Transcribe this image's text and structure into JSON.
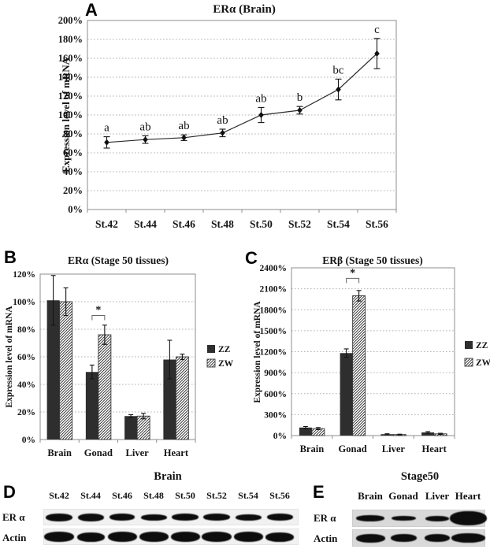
{
  "chart_data": [
    {
      "panel_label": "A",
      "type": "line",
      "title": "ERα (Brain)",
      "ylabel": "Expression level of mRNA",
      "categories": [
        "St.42",
        "St.44",
        "St.46",
        "St.48",
        "St.50",
        "St.52",
        "St.54",
        "St.56"
      ],
      "values": [
        71,
        74,
        76,
        81,
        100,
        105,
        127,
        165
      ],
      "errors": [
        6,
        4,
        3,
        4,
        8,
        4,
        11,
        16
      ],
      "point_labels": [
        "a",
        "ab",
        "ab",
        "ab",
        "ab",
        "b",
        "bc",
        "c"
      ],
      "ylim": [
        0,
        200
      ],
      "ytick_step": 20,
      "ytick_suffix": "%",
      "grid": true,
      "marker": "diamond",
      "colors": {
        "line": "#2b2b2b",
        "marker": "#111111"
      }
    },
    {
      "panel_label": "B",
      "type": "bar",
      "title": "ERα (Stage 50 tissues)",
      "ylabel": "Expression level of mRNA",
      "categories": [
        "Brain",
        "Gonad",
        "Liver",
        "Heart"
      ],
      "series": [
        {
          "name": "ZZ",
          "fill": "solid",
          "color": "#2e2e2e",
          "values": [
            101,
            49,
            17,
            58
          ],
          "errors": [
            18,
            5,
            1,
            14
          ]
        },
        {
          "name": "ZW",
          "fill": "hatch",
          "color": "#222222",
          "values": [
            100,
            76,
            17,
            60
          ],
          "errors": [
            10,
            7,
            2,
            2
          ]
        }
      ],
      "ylim": [
        0,
        120
      ],
      "ytick_step": 20,
      "ytick_suffix": "%",
      "grid": true,
      "legend": [
        "ZZ",
        "ZW"
      ],
      "legend_position": "right",
      "significance": {
        "category": "Gonad",
        "symbol": "*",
        "y": 90
      }
    },
    {
      "panel_label": "C",
      "type": "bar",
      "title": "ERβ (Stage 50 tissues)",
      "ylabel": "Expression level of mRNA",
      "categories": [
        "Brain",
        "Gonad",
        "Liver",
        "Heart"
      ],
      "series": [
        {
          "name": "ZZ",
          "fill": "solid",
          "color": "#2e2e2e",
          "values": [
            115,
            1180,
            20,
            45
          ],
          "errors": [
            15,
            60,
            6,
            12
          ]
        },
        {
          "name": "ZW",
          "fill": "hatch",
          "color": "#222222",
          "values": [
            100,
            2000,
            15,
            25
          ],
          "errors": [
            15,
            75,
            5,
            8
          ]
        }
      ],
      "ylim": [
        0,
        2400
      ],
      "ytick_step": 300,
      "ytick_suffix": "%",
      "grid": true,
      "legend": [
        "ZZ",
        "ZW"
      ],
      "legend_position": "right",
      "significance": {
        "category": "Gonad",
        "symbol": "*",
        "y": 2250
      }
    }
  ],
  "blots": [
    {
      "panel_label": "D",
      "title": "Brain",
      "lanes": [
        "St.42",
        "St.44",
        "St.46",
        "St.48",
        "St.50",
        "St.52",
        "St.54",
        "St.56"
      ],
      "rows": [
        {
          "label": "ER α",
          "band_widths": [
            34,
            33,
            32,
            33,
            34,
            34,
            33,
            33
          ],
          "band_heights": [
            10,
            10,
            9,
            8,
            9,
            9,
            8,
            9
          ]
        },
        {
          "label": "Actin",
          "band_widths": [
            38,
            35,
            37,
            37,
            37,
            38,
            37,
            36
          ],
          "band_heights": [
            13,
            12,
            13,
            13,
            13,
            13,
            13,
            12
          ]
        }
      ]
    },
    {
      "panel_label": "E",
      "title": "Stage50",
      "lanes": [
        "Brain",
        "Gonad",
        "Liver",
        "Heart"
      ],
      "rows": [
        {
          "label": "ER α",
          "band_widths": [
            36,
            31,
            30,
            47
          ],
          "band_heights": [
            8,
            6,
            7,
            18
          ]
        },
        {
          "label": "Actin",
          "band_widths": [
            37,
            33,
            32,
            43
          ],
          "band_heights": [
            11,
            10,
            10,
            12
          ]
        }
      ]
    }
  ]
}
